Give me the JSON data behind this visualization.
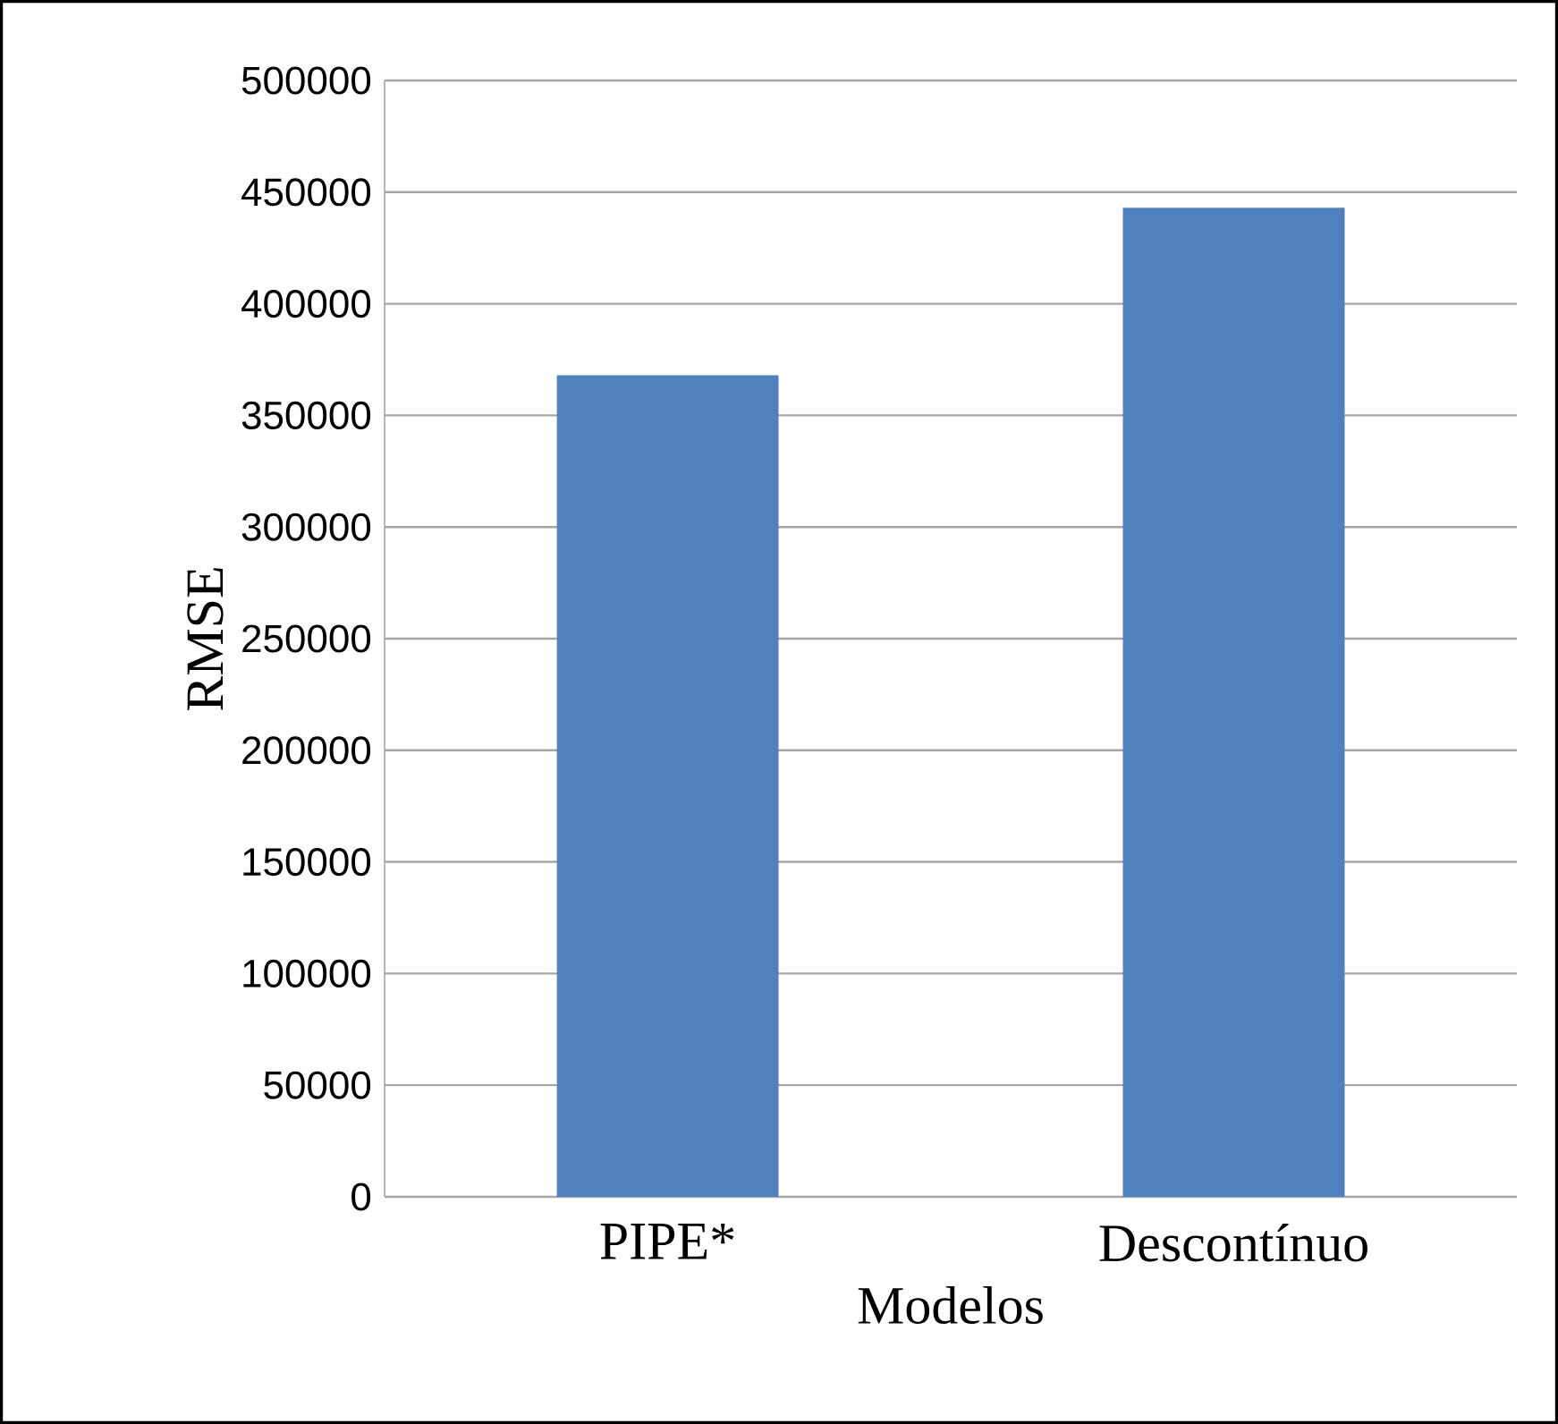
{
  "chart_data": {
    "type": "bar",
    "xlabel": "Modelos",
    "ylabel": "RMSE",
    "categories": [
      "PIPE*",
      "Descontínuo"
    ],
    "values": [
      368000,
      443000
    ],
    "color": "#4f81bd",
    "ylim": [
      0,
      500000
    ],
    "yticks": [
      0,
      50000,
      100000,
      150000,
      200000,
      250000,
      300000,
      350000,
      400000,
      450000,
      500000
    ],
    "grid": "y"
  }
}
